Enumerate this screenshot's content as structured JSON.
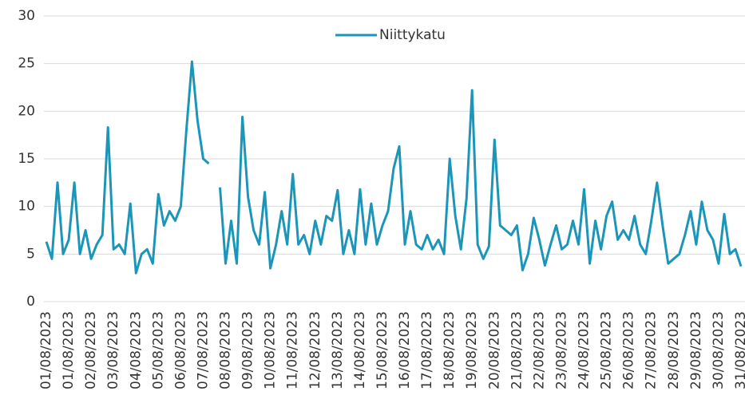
{
  "chart_data": {
    "type": "line",
    "categories": [
      "01/08/2023",
      null,
      null,
      null,
      "01/08/2023",
      null,
      null,
      null,
      "02/08/2023",
      null,
      null,
      null,
      "03/08/2023",
      null,
      null,
      null,
      "04/08/2023",
      null,
      null,
      null,
      "05/08/2023",
      null,
      null,
      null,
      "06/08/2023",
      null,
      null,
      null,
      "07/08/2023",
      null,
      null,
      null,
      "08/08/2023",
      null,
      null,
      null,
      "09/08/2023",
      null,
      null,
      null,
      "10/08/2023",
      null,
      null,
      null,
      "11/08/2023",
      null,
      null,
      null,
      "12/08/2023",
      null,
      null,
      null,
      "13/08/2023",
      null,
      null,
      null,
      "14/08/2023",
      null,
      null,
      null,
      "15/08/2023",
      null,
      null,
      null,
      "16/08/2023",
      null,
      null,
      null,
      "17/08/2023",
      null,
      null,
      null,
      "18/08/2023",
      null,
      null,
      null,
      "19/08/2023",
      null,
      null,
      null,
      "20/08/2023",
      null,
      null,
      null,
      "21/08/2023",
      null,
      null,
      null,
      "22/08/2023",
      null,
      null,
      null,
      "23/08/2023",
      null,
      null,
      null,
      "24/08/2023",
      null,
      null,
      null,
      "25/08/2023",
      null,
      null,
      null,
      "26/08/2023",
      null,
      null,
      null,
      "27/08/2023",
      null,
      null,
      null,
      "28/08/2023",
      null,
      null,
      null,
      "29/08/2023",
      null,
      null,
      null,
      "30/08/2023",
      null,
      null,
      null,
      "31/08/2023"
    ],
    "series": [
      {
        "name": "Niittykatu",
        "color": "#1b96b9",
        "values": [
          6.3,
          4.5,
          12.5,
          5,
          6.5,
          12.5,
          5,
          7.5,
          4.5,
          6,
          7,
          18.3,
          5.5,
          6,
          5,
          10.3,
          3,
          5,
          5.5,
          4,
          11.3,
          8,
          9.5,
          8.5,
          10,
          18,
          25.2,
          19,
          15,
          14.5,
          null,
          12,
          4,
          8.5,
          4,
          19.4,
          11,
          7.5,
          6,
          11.5,
          3.5,
          6,
          9.5,
          6,
          13.4,
          6,
          7,
          5,
          8.5,
          6,
          9,
          8.5,
          11.7,
          5,
          7.5,
          5,
          11.8,
          6,
          10.3,
          6,
          8,
          9.5,
          14,
          16.3,
          6,
          9.5,
          6,
          5.5,
          7,
          5.5,
          6.5,
          5,
          15,
          9,
          5.5,
          10.8,
          22.2,
          6,
          4.5,
          5.8,
          17,
          8,
          7.5,
          7,
          8,
          3.3,
          5,
          8.8,
          6.5,
          3.8,
          6,
          8,
          5.5,
          6,
          8.5,
          6,
          11.8,
          4,
          8.5,
          5.5,
          9,
          10.5,
          6.5,
          7.5,
          6.5,
          9,
          6,
          5,
          8.5,
          12.5,
          8,
          4,
          4.5,
          5,
          7,
          9.5,
          6,
          10.5,
          7.5,
          6.5,
          4,
          9.2,
          5,
          5.5,
          3.7
        ]
      }
    ],
    "ylim": [
      0,
      30
    ],
    "yticks": [
      0,
      5,
      10,
      15,
      20,
      25,
      30
    ],
    "grid": true,
    "legend": "top"
  }
}
